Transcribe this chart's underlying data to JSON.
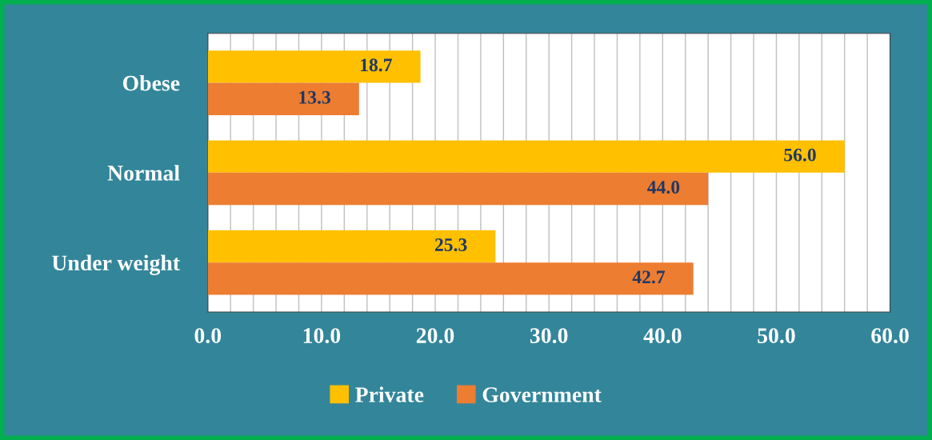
{
  "chart_data": {
    "type": "bar",
    "orientation": "horizontal",
    "categories": [
      "Obese",
      "Normal",
      "Under weight"
    ],
    "series": [
      {
        "name": "Private",
        "color": "#ffc000",
        "values": [
          18.7,
          56.0,
          25.3
        ],
        "value_labels": [
          "18.7",
          "56.0",
          "25.3"
        ]
      },
      {
        "name": "Government",
        "color": "#ed7d31",
        "values": [
          13.3,
          44.0,
          42.7
        ],
        "value_labels": [
          "13.3",
          "44.0",
          "42.7"
        ]
      }
    ],
    "xlim": [
      0,
      60
    ],
    "xticks": [
      {
        "value": 0,
        "label": "0.0"
      },
      {
        "value": 2,
        "label": null
      },
      {
        "value": 4,
        "label": null
      },
      {
        "value": 6,
        "label": null
      },
      {
        "value": 8,
        "label": null
      },
      {
        "value": 10,
        "label": "10.0"
      },
      {
        "value": 12,
        "label": null
      },
      {
        "value": 14,
        "label": null
      },
      {
        "value": 16,
        "label": null
      },
      {
        "value": 18,
        "label": null
      },
      {
        "value": 20,
        "label": "20.0"
      },
      {
        "value": 22,
        "label": null
      },
      {
        "value": 24,
        "label": null
      },
      {
        "value": 26,
        "label": null
      },
      {
        "value": 28,
        "label": null
      },
      {
        "value": 30,
        "label": "30.0"
      },
      {
        "value": 32,
        "label": null
      },
      {
        "value": 34,
        "label": null
      },
      {
        "value": 36,
        "label": null
      },
      {
        "value": 38,
        "label": null
      },
      {
        "value": 40,
        "label": "40.0"
      },
      {
        "value": 42,
        "label": null
      },
      {
        "value": 44,
        "label": null
      },
      {
        "value": 46,
        "label": null
      },
      {
        "value": 48,
        "label": null
      },
      {
        "value": 50,
        "label": "50.0"
      },
      {
        "value": 52,
        "label": null
      },
      {
        "value": 54,
        "label": null
      },
      {
        "value": 56,
        "label": null
      },
      {
        "value": 58,
        "label": null
      },
      {
        "value": 60,
        "label": "60.0"
      }
    ],
    "grid": "x",
    "legend": "bottom"
  }
}
